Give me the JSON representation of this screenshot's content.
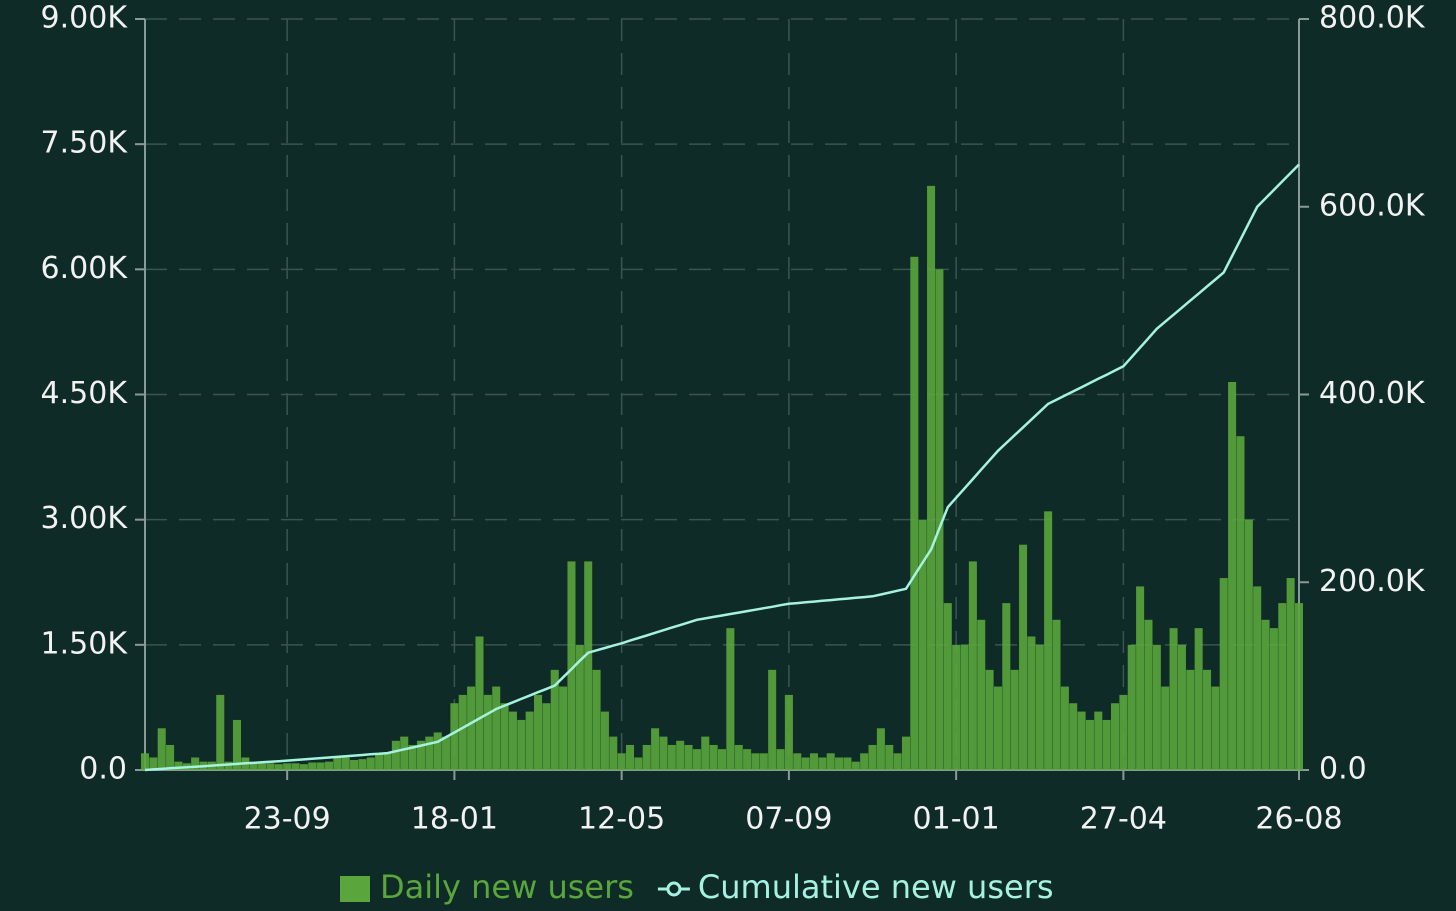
{
  "chart_data": {
    "type": "combo",
    "categories": [
      null,
      null,
      null,
      null,
      null,
      null,
      null,
      null,
      null,
      null,
      null,
      null,
      null,
      null,
      null,
      null,
      null,
      "23-09",
      null,
      null,
      null,
      null,
      null,
      null,
      null,
      null,
      null,
      null,
      null,
      null,
      null,
      null,
      null,
      null,
      null,
      null,
      null,
      "18-01",
      null,
      null,
      null,
      null,
      null,
      null,
      null,
      null,
      null,
      null,
      null,
      null,
      null,
      null,
      null,
      null,
      null,
      null,
      null,
      "12-05",
      null,
      null,
      null,
      null,
      null,
      null,
      null,
      null,
      null,
      null,
      null,
      null,
      null,
      null,
      null,
      null,
      null,
      null,
      null,
      "07-09",
      null,
      null,
      null,
      null,
      null,
      null,
      null,
      null,
      null,
      null,
      null,
      null,
      null,
      null,
      null,
      null,
      null,
      null,
      null,
      "01-01",
      null,
      null,
      null,
      null,
      null,
      null,
      null,
      null,
      null,
      null,
      null,
      null,
      null,
      null,
      null,
      null,
      null,
      null,
      null,
      "27-04",
      null,
      null,
      null,
      null,
      null,
      null,
      null,
      null,
      null,
      null,
      null,
      null,
      null,
      null,
      null,
      null,
      null,
      null,
      null,
      null,
      "26-08"
    ],
    "series": [
      {
        "name": "Daily new users",
        "type": "bar",
        "color": "#5aa63c",
        "values": [
          200,
          150,
          500,
          300,
          100,
          80,
          150,
          100,
          100,
          900,
          100,
          600,
          150,
          100,
          80,
          80,
          70,
          80,
          80,
          70,
          90,
          90,
          100,
          150,
          150,
          120,
          130,
          150,
          200,
          200,
          350,
          400,
          300,
          350,
          400,
          450,
          400,
          800,
          900,
          1000,
          1600,
          900,
          1000,
          800,
          700,
          600,
          700,
          900,
          800,
          1200,
          1000,
          2500,
          1500,
          2500,
          1200,
          700,
          400,
          200,
          300,
          150,
          300,
          500,
          400,
          300,
          350,
          300,
          250,
          400,
          300,
          250,
          1700,
          300,
          250,
          200,
          200,
          1200,
          250,
          900,
          200,
          150,
          200,
          150,
          200,
          150,
          150,
          100,
          200,
          300,
          500,
          300,
          200,
          400,
          6150,
          3000,
          7000,
          6000,
          2000,
          1500,
          1500,
          2500,
          1800,
          1200,
          1000,
          2000,
          1200,
          2700,
          1600,
          1500,
          3100,
          1800,
          1000,
          800,
          700,
          600,
          700,
          600,
          800,
          900,
          1500,
          2200,
          1800,
          1500,
          1000,
          1700,
          1500,
          1200,
          1700,
          1200,
          1000,
          2300,
          4650,
          4000,
          3000,
          2200,
          1800,
          1700,
          2000,
          2300,
          2000
        ]
      },
      {
        "name": "Cumulative new users",
        "type": "line",
        "axis": "y2",
        "color": "#a6f2e0",
        "values": [
          0,
          600,
          1200,
          1800,
          2400,
          2900,
          3500,
          4100,
          4700,
          5300,
          5900,
          6500,
          7100,
          7600,
          8200,
          8800,
          9400,
          10000,
          10700,
          11300,
          12000,
          12700,
          13300,
          14000,
          14700,
          15300,
          16000,
          16700,
          17300,
          18000,
          20000,
          22000,
          24000,
          26000,
          28000,
          30000,
          35000,
          40000,
          45000,
          50000,
          55000,
          60000,
          65000,
          68600,
          72100,
          75700,
          79300,
          82900,
          86400,
          90000,
          98800,
          107500,
          116300,
          125000,
          127500,
          130000,
          132500,
          135000,
          137800,
          140600,
          143300,
          146100,
          148900,
          151700,
          154400,
          157200,
          160000,
          161500,
          163100,
          164600,
          166200,
          167700,
          169300,
          170800,
          172400,
          173900,
          175500,
          177000,
          177800,
          178600,
          179400,
          180200,
          181000,
          181800,
          182600,
          183400,
          184200,
          185000,
          187000,
          189000,
          191000,
          193000,
          207000,
          221000,
          235000,
          257500,
          280000,
          290000,
          300000,
          310000,
          320000,
          330000,
          340000,
          348300,
          356700,
          365000,
          373300,
          381700,
          390000,
          394400,
          398900,
          403300,
          407800,
          412200,
          416700,
          421100,
          425600,
          430000,
          440000,
          450000,
          460000,
          470000,
          477500,
          485000,
          492500,
          500000,
          507500,
          515000,
          522500,
          530000,
          547500,
          565000,
          582500,
          600000,
          609000,
          618000,
          627000,
          636000,
          645000
        ]
      }
    ],
    "ylim": [
      0,
      9000
    ],
    "yticks": [
      {
        "value": 0,
        "label": "0.0"
      },
      {
        "value": 1500,
        "label": "1.50K"
      },
      {
        "value": 3000,
        "label": "3.00K"
      },
      {
        "value": 4500,
        "label": "4.50K"
      },
      {
        "value": 6000,
        "label": "6.00K"
      },
      {
        "value": 7500,
        "label": "7.50K"
      },
      {
        "value": 9000,
        "label": "9.00K"
      }
    ],
    "y2lim": [
      0,
      800000
    ],
    "y2ticks": [
      {
        "value": 0,
        "label": "0.0"
      },
      {
        "value": 200000,
        "label": "200.0K"
      },
      {
        "value": 400000,
        "label": "400.0K"
      },
      {
        "value": 600000,
        "label": "600.0K"
      },
      {
        "value": 800000,
        "label": "800.0K"
      }
    ],
    "grid": true
  }
}
